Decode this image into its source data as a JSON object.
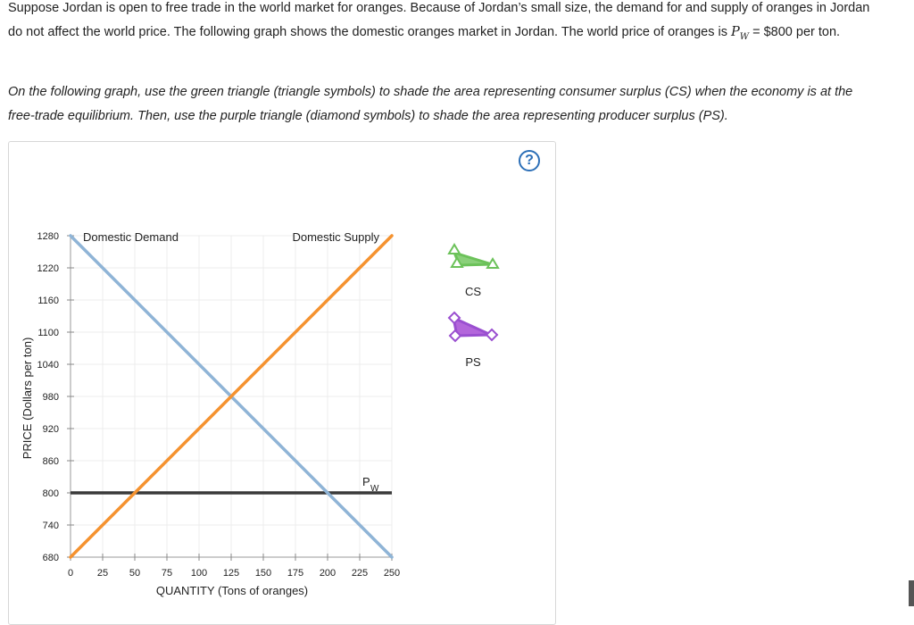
{
  "intro": {
    "line1": "Suppose Jordan is open to free trade in the world market for oranges. Because of Jordan’s small size, the demand for and supply of oranges in Jordan",
    "line2_start": "do not affect the world price. The following graph shows the domestic oranges market in Jordan. The world price of oranges is ",
    "pw_symbol": "P",
    "pw_sub": "W",
    "line2_end": " = $800 per ton."
  },
  "instructions": {
    "line1": "On the following graph, use the green triangle (triangle symbols) to shade the area representing consumer surplus (CS) when the economy is at the",
    "line2": "free-trade equilibrium. Then, use the purple triangle (diamond symbols) to shade the area representing producer surplus (PS)."
  },
  "help_label": "?",
  "chart_data": {
    "type": "line",
    "xlabel": "QUANTITY (Tons of oranges)",
    "ylabel": "PRICE (Dollars per ton)",
    "xlim": [
      0,
      250
    ],
    "ylim": [
      680,
      1280
    ],
    "xticks": [
      0,
      25,
      50,
      75,
      100,
      125,
      150,
      175,
      200,
      225,
      250
    ],
    "yticks": [
      680,
      740,
      800,
      860,
      920,
      980,
      1040,
      1100,
      1160,
      1220,
      1280
    ],
    "grid": true,
    "series": [
      {
        "name": "Domestic Demand",
        "color": "#8fb4d6",
        "points": [
          [
            0,
            1280
          ],
          [
            250,
            680
          ]
        ]
      },
      {
        "name": "Domestic Supply",
        "color": "#f5922f",
        "points": [
          [
            0,
            680
          ],
          [
            250,
            1280
          ]
        ]
      }
    ],
    "world_price": {
      "label_main": "P",
      "label_sub": "W",
      "value": 800,
      "color": "#3a3a3a"
    }
  },
  "tools": [
    {
      "label": "CS",
      "shape": "triangle",
      "fill": "#8ad07a",
      "stroke": "#6cc25a"
    },
    {
      "label": "PS",
      "shape": "diamond",
      "fill": "#b366db",
      "stroke": "#9a4fd0"
    }
  ]
}
